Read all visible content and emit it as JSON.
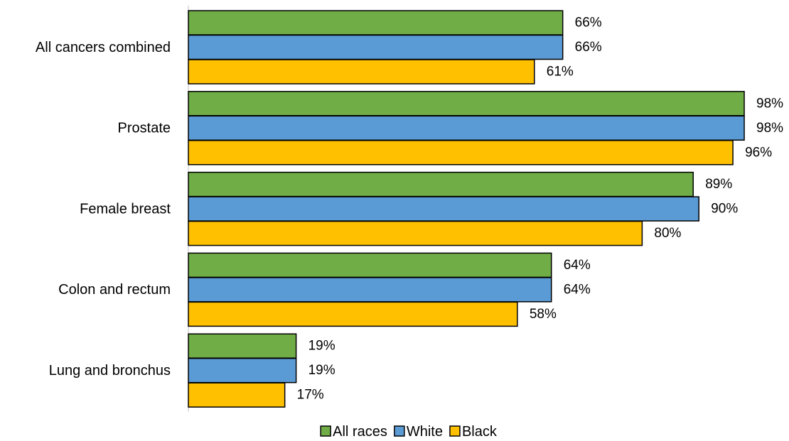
{
  "chart_data": {
    "type": "bar",
    "orientation": "horizontal",
    "categories": [
      "All cancers combined",
      "Prostate",
      "Female breast",
      "Colon and rectum",
      "Lung and bronchus"
    ],
    "series": [
      {
        "name": "All races",
        "color": "#70ad47",
        "values": [
          66,
          98,
          89,
          64,
          19
        ]
      },
      {
        "name": "White",
        "color": "#5b9bd5",
        "values": [
          66,
          98,
          90,
          64,
          19
        ]
      },
      {
        "name": "Black",
        "color": "#ffc000",
        "values": [
          61,
          96,
          80,
          58,
          17
        ]
      }
    ],
    "value_suffix": "%",
    "xlim": [
      0,
      100
    ],
    "grid": false,
    "data_labels": true,
    "legend_position": "bottom"
  }
}
